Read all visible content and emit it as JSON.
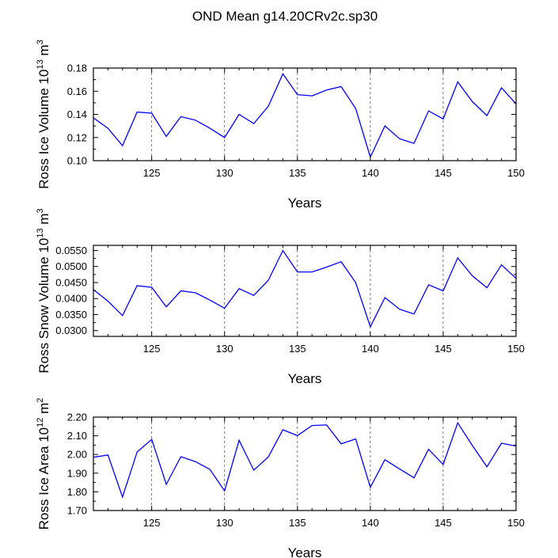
{
  "figure_title": "OND Mean g14.20CRv2c.sp30",
  "line_color": "#0000ff",
  "chart_data": [
    {
      "type": "line",
      "ylabel_main": "Ross Ice Volume 10",
      "ylabel_exp": "13",
      "ylabel_unit": " m",
      "ylabel_unit_exp": "3",
      "xlabel": "Years",
      "xlim": [
        121,
        150
      ],
      "ylim": [
        0.1,
        0.18
      ],
      "x_ticks": [
        125,
        130,
        135,
        140,
        145,
        150
      ],
      "x_tick_labels": [
        "125",
        "130",
        "135",
        "140",
        "145",
        "150"
      ],
      "y_ticks": [
        0.1,
        0.12,
        0.14,
        0.16,
        0.18
      ],
      "y_tick_labels": [
        "0.10",
        "0.12",
        "0.14",
        "0.16",
        "0.18"
      ],
      "grid": "dashed vertical at major x ticks",
      "series": [
        {
          "name": "Ross Ice Volume",
          "x": [
            121,
            122,
            123,
            124,
            125,
            126,
            127,
            128,
            129,
            130,
            131,
            132,
            133,
            134,
            135,
            136,
            137,
            138,
            139,
            140,
            141,
            142,
            143,
            144,
            145,
            146,
            147,
            148,
            149,
            150
          ],
          "values": [
            0.137,
            0.128,
            0.113,
            0.142,
            0.141,
            0.121,
            0.138,
            0.135,
            0.128,
            0.12,
            0.14,
            0.132,
            0.147,
            0.175,
            0.157,
            0.156,
            0.161,
            0.164,
            0.145,
            0.103,
            0.13,
            0.119,
            0.115,
            0.143,
            0.136,
            0.168,
            0.151,
            0.139,
            0.163,
            0.149
          ]
        }
      ]
    },
    {
      "type": "line",
      "ylabel_main": "Ross Snow Volume 10",
      "ylabel_exp": "13",
      "ylabel_unit": " m",
      "ylabel_unit_exp": "3",
      "xlabel": "Years",
      "xlim": [
        121,
        150
      ],
      "ylim": [
        0.0282,
        0.0566
      ],
      "x_ticks": [
        125,
        130,
        135,
        140,
        145,
        150
      ],
      "x_tick_labels": [
        "125",
        "130",
        "135",
        "140",
        "145",
        "150"
      ],
      "y_ticks": [
        0.03,
        0.035,
        0.04,
        0.045,
        0.05,
        0.055
      ],
      "y_tick_labels": [
        "0.0300",
        "0.0350",
        "0.0400",
        "0.0450",
        "0.0500",
        "0.0550"
      ],
      "grid": "dashed vertical at major x ticks",
      "series": [
        {
          "name": "Ross Snow Volume",
          "x": [
            121,
            122,
            123,
            124,
            125,
            126,
            127,
            128,
            129,
            130,
            131,
            132,
            133,
            134,
            135,
            136,
            137,
            138,
            139,
            140,
            141,
            142,
            143,
            144,
            145,
            146,
            147,
            148,
            149,
            150
          ],
          "values": [
            0.0428,
            0.0392,
            0.0347,
            0.044,
            0.0435,
            0.0374,
            0.0424,
            0.0418,
            0.0395,
            0.037,
            0.0431,
            0.041,
            0.0457,
            0.055,
            0.0483,
            0.0483,
            0.0498,
            0.0515,
            0.045,
            0.0312,
            0.0403,
            0.0367,
            0.0352,
            0.0443,
            0.0424,
            0.0527,
            0.0471,
            0.0434,
            0.0505,
            0.0463
          ]
        }
      ]
    },
    {
      "type": "line",
      "ylabel_main": "Ross Ice Area 10",
      "ylabel_exp": "12",
      "ylabel_unit": " m",
      "ylabel_unit_exp": "2",
      "xlabel": "Years",
      "xlim": [
        121,
        150
      ],
      "ylim": [
        1.7,
        2.2
      ],
      "x_ticks": [
        125,
        130,
        135,
        140,
        145,
        150
      ],
      "x_tick_labels": [
        "125",
        "130",
        "135",
        "140",
        "145",
        "150"
      ],
      "y_ticks": [
        1.7,
        1.8,
        1.9,
        2.0,
        2.1,
        2.2
      ],
      "y_tick_labels": [
        "1.70",
        "1.80",
        "1.90",
        "2.00",
        "2.10",
        "2.20"
      ],
      "grid": "dashed vertical at major x ticks",
      "series": [
        {
          "name": "Ross Ice Area",
          "x": [
            121,
            122,
            123,
            124,
            125,
            126,
            127,
            128,
            129,
            130,
            131,
            132,
            133,
            134,
            135,
            136,
            137,
            138,
            139,
            140,
            141,
            142,
            143,
            144,
            145,
            146,
            147,
            148,
            149,
            150
          ],
          "values": [
            1.985,
            1.997,
            1.772,
            2.013,
            2.081,
            1.84,
            1.988,
            1.962,
            1.92,
            1.805,
            2.076,
            1.916,
            1.987,
            2.132,
            2.101,
            2.155,
            2.158,
            2.057,
            2.083,
            1.824,
            1.972,
            1.923,
            1.875,
            2.028,
            1.946,
            2.169,
            2.048,
            1.934,
            2.06,
            2.045
          ]
        }
      ]
    }
  ]
}
